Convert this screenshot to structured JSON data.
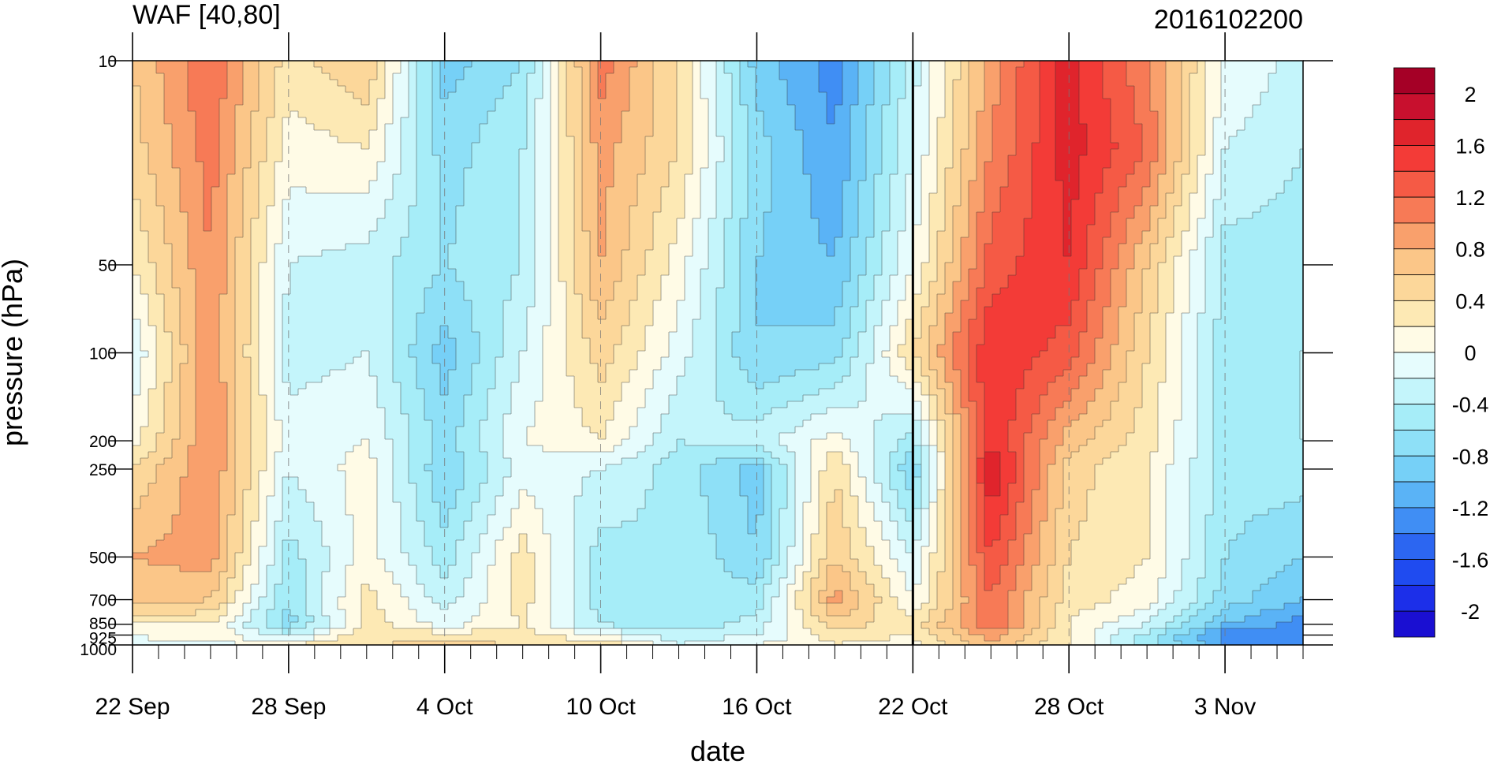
{
  "chart_data": {
    "type": "heatmap",
    "title": "WAF [40,80]",
    "title_right": "2016102200",
    "xlabel": "date",
    "ylabel": "pressure (hPa)",
    "x_tick_labels": [
      "22 Sep",
      "28 Sep",
      "4 Oct",
      "10 Oct",
      "16 Oct",
      "22 Oct",
      "28 Oct",
      "3 Nov"
    ],
    "x_tick_days": [
      0,
      6,
      12,
      18,
      24,
      30,
      36,
      42
    ],
    "x_range_days": [
      0,
      45
    ],
    "y_tick_labels": [
      "10",
      "50",
      "100",
      "200",
      "250",
      "500",
      "700",
      "850",
      "925",
      "1000"
    ],
    "y_tick_values": [
      10,
      50,
      100,
      200,
      250,
      500,
      700,
      850,
      925,
      1000
    ],
    "y_range": [
      10,
      1000
    ],
    "y_scale": "log, inverted (10 at top)",
    "reference_line_day": 30,
    "colorbar": {
      "labels": [
        "2",
        "1.6",
        "1.2",
        "0.8",
        "0.4",
        "0",
        "-0.4",
        "-0.8",
        "-1.2",
        "-1.6",
        "-2"
      ],
      "levels": [
        2.2,
        2.0,
        1.8,
        1.6,
        1.4,
        1.2,
        1.0,
        0.8,
        0.6,
        0.4,
        0.2,
        0.0,
        -0.2,
        -0.4,
        -0.6,
        -0.8,
        -1.0,
        -1.2,
        -1.4,
        -1.6,
        -1.8,
        -2.0
      ],
      "colors": [
        "#a50026",
        "#c8102e",
        "#e0242c",
        "#f33b37",
        "#f55a45",
        "#f77a56",
        "#f9a06c",
        "#fbc688",
        "#fcd79a",
        "#fde9b4",
        "#fffbe6",
        "#e6fcfd",
        "#c4f5fb",
        "#a6edf8",
        "#8ee0f7",
        "#76d0f7",
        "#5ab3f6",
        "#408ef4",
        "#2c66f1",
        "#1f4bf0",
        "#1c2fe9",
        "#1a0fd2"
      ]
    },
    "days": [
      0,
      3,
      6,
      9,
      12,
      15,
      18,
      21,
      24,
      27,
      30,
      33,
      36,
      39,
      42,
      45
    ],
    "pressure_levels": [
      10,
      20,
      50,
      100,
      200,
      250,
      500,
      700,
      850,
      925,
      1000
    ],
    "values": [
      [
        0.6,
        1.2,
        0.3,
        0.6,
        -0.9,
        -0.6,
        1.1,
        0.4,
        -0.9,
        -1.3,
        -0.3,
        0.9,
        1.7,
        1.0,
        0.0,
        -0.3
      ],
      [
        0.5,
        1.1,
        0.1,
        0.2,
        -0.7,
        -0.4,
        0.9,
        0.4,
        -0.7,
        -1.2,
        -0.2,
        1.0,
        1.7,
        1.2,
        -0.2,
        -0.4
      ],
      [
        0.2,
        1.0,
        -0.2,
        -0.3,
        -0.6,
        -0.4,
        0.8,
        0.1,
        -0.8,
        -1.0,
        0.0,
        1.3,
        1.6,
        0.6,
        -0.5,
        -0.5
      ],
      [
        -0.2,
        1.0,
        -0.3,
        -0.2,
        -0.9,
        -0.2,
        0.5,
        -0.1,
        -0.8,
        -0.7,
        0.4,
        1.6,
        1.3,
        0.4,
        -0.5,
        -0.4
      ],
      [
        0.1,
        1.0,
        -0.1,
        0.0,
        -0.7,
        0.0,
        0.2,
        -0.4,
        -0.3,
        0.1,
        -0.5,
        1.6,
        0.7,
        0.3,
        -0.5,
        -0.4
      ],
      [
        0.4,
        1.0,
        -0.2,
        0.1,
        -0.8,
        -0.1,
        -0.2,
        -0.5,
        -0.9,
        0.4,
        -0.8,
        1.8,
        0.5,
        0.2,
        -0.5,
        -0.5
      ],
      [
        0.8,
        0.9,
        -0.5,
        0.1,
        -0.5,
        0.3,
        -0.5,
        -0.4,
        -0.8,
        0.6,
        -0.2,
        1.4,
        0.4,
        0.2,
        -0.6,
        -0.8
      ],
      [
        0.7,
        0.6,
        -0.6,
        0.3,
        -0.3,
        0.3,
        -0.5,
        -0.4,
        -0.5,
        0.9,
        0.0,
        1.2,
        0.3,
        0.1,
        -0.7,
        -1.0
      ],
      [
        0.2,
        0.2,
        -0.7,
        0.3,
        -0.1,
        0.2,
        -0.4,
        -0.6,
        -0.3,
        0.5,
        0.3,
        1.2,
        0.2,
        -0.2,
        -1.0,
        -1.3
      ],
      [
        0.0,
        0.2,
        -0.3,
        0.4,
        0.3,
        0.3,
        0.0,
        -0.3,
        -0.2,
        0.3,
        0.2,
        0.9,
        0.2,
        -0.5,
        -1.3,
        -1.4
      ],
      [
        -0.1,
        -0.1,
        0.2,
        0.3,
        0.6,
        0.3,
        0.4,
        -0.2,
        0.0,
        0.2,
        0.1,
        0.8,
        0.2,
        -0.5,
        -1.2,
        -1.3
      ]
    ]
  }
}
